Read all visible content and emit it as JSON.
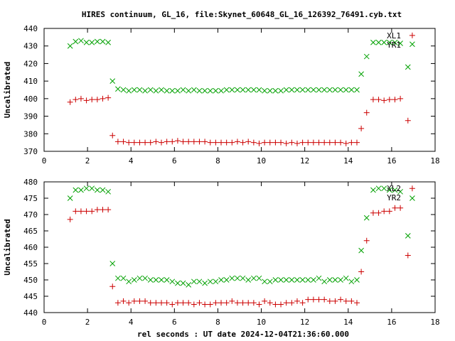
{
  "window": {
    "title": "HIRES continuum, GL_16, file:Skynet_60648_GL_16_126392_76491.cyb.txt"
  },
  "colors": {
    "plus_series": "#cc0000",
    "x_series": "#00a000",
    "axes": "#000000",
    "background": "#ffffff"
  },
  "chart_data": [
    {
      "type": "scatter",
      "title": "HIRES continuum, GL_16, file:Skynet_60648_GL_16_126392_76491.cyb.txt",
      "xlabel": "",
      "ylabel": "Uncalibrated",
      "xlim": [
        0,
        18
      ],
      "ylim": [
        370,
        440
      ],
      "xticks": [
        0,
        2,
        4,
        6,
        8,
        10,
        12,
        14,
        16,
        18
      ],
      "yticks": [
        370,
        380,
        390,
        400,
        410,
        420,
        430,
        440
      ],
      "grid": false,
      "legend": "top-right",
      "series": [
        {
          "name": "XL1",
          "marker": "x",
          "color": "#00a000",
          "points": [
            [
              1.2,
              430
            ],
            [
              1.45,
              432.5
            ],
            [
              1.7,
              433
            ],
            [
              1.95,
              432
            ],
            [
              2.2,
              432
            ],
            [
              2.45,
              432.5
            ],
            [
              2.7,
              432.5
            ],
            [
              2.95,
              432
            ],
            [
              3.15,
              410
            ],
            [
              3.4,
              405.5
            ],
            [
              3.65,
              405
            ],
            [
              3.9,
              404.5
            ],
            [
              4.15,
              405
            ],
            [
              4.4,
              405
            ],
            [
              4.65,
              404.5
            ],
            [
              4.9,
              405
            ],
            [
              5.15,
              404.5
            ],
            [
              5.4,
              405
            ],
            [
              5.65,
              404.5
            ],
            [
              5.9,
              404.5
            ],
            [
              6.15,
              404.5
            ],
            [
              6.4,
              405
            ],
            [
              6.65,
              404.5
            ],
            [
              6.9,
              405
            ],
            [
              7.15,
              404.5
            ],
            [
              7.4,
              404.5
            ],
            [
              7.65,
              404.5
            ],
            [
              7.9,
              404.5
            ],
            [
              8.15,
              404.5
            ],
            [
              8.4,
              405
            ],
            [
              8.65,
              405
            ],
            [
              8.9,
              405
            ],
            [
              9.15,
              405
            ],
            [
              9.4,
              405
            ],
            [
              9.65,
              405
            ],
            [
              9.9,
              405
            ],
            [
              10.15,
              404.5
            ],
            [
              10.4,
              404.5
            ],
            [
              10.65,
              404.5
            ],
            [
              10.9,
              404.5
            ],
            [
              11.15,
              405
            ],
            [
              11.4,
              405
            ],
            [
              11.65,
              405
            ],
            [
              11.9,
              405
            ],
            [
              12.15,
              405
            ],
            [
              12.4,
              405
            ],
            [
              12.65,
              405
            ],
            [
              12.9,
              405
            ],
            [
              13.15,
              405
            ],
            [
              13.4,
              405
            ],
            [
              13.65,
              405
            ],
            [
              13.9,
              405
            ],
            [
              14.15,
              405
            ],
            [
              14.4,
              405
            ],
            [
              14.6,
              414
            ],
            [
              14.85,
              424
            ],
            [
              15.15,
              432
            ],
            [
              15.4,
              432
            ],
            [
              15.65,
              432
            ],
            [
              15.9,
              432
            ],
            [
              16.15,
              432
            ],
            [
              16.4,
              431.5
            ],
            [
              16.75,
              418
            ],
            [
              16.95,
              431
            ]
          ]
        },
        {
          "name": "YR1",
          "marker": "+",
          "color": "#cc0000",
          "points": [
            [
              1.2,
              398
            ],
            [
              1.45,
              399.5
            ],
            [
              1.7,
              400
            ],
            [
              1.95,
              399
            ],
            [
              2.2,
              399.5
            ],
            [
              2.45,
              399.5
            ],
            [
              2.7,
              400
            ],
            [
              2.95,
              400.5
            ],
            [
              3.15,
              379
            ],
            [
              3.4,
              375.5
            ],
            [
              3.65,
              375.5
            ],
            [
              3.9,
              375
            ],
            [
              4.15,
              375
            ],
            [
              4.4,
              375
            ],
            [
              4.65,
              375
            ],
            [
              4.9,
              375
            ],
            [
              5.15,
              375.5
            ],
            [
              5.4,
              375
            ],
            [
              5.65,
              375.5
            ],
            [
              5.9,
              375.5
            ],
            [
              6.15,
              376
            ],
            [
              6.4,
              375.5
            ],
            [
              6.65,
              375.5
            ],
            [
              6.9,
              375.5
            ],
            [
              7.15,
              375.5
            ],
            [
              7.4,
              375.5
            ],
            [
              7.65,
              375
            ],
            [
              7.9,
              375
            ],
            [
              8.15,
              375
            ],
            [
              8.4,
              375
            ],
            [
              8.65,
              375
            ],
            [
              8.9,
              375.5
            ],
            [
              9.15,
              375
            ],
            [
              9.4,
              375.5
            ],
            [
              9.65,
              375
            ],
            [
              9.9,
              374.5
            ],
            [
              10.15,
              375
            ],
            [
              10.4,
              375
            ],
            [
              10.65,
              375
            ],
            [
              10.9,
              375
            ],
            [
              11.15,
              374.5
            ],
            [
              11.4,
              375
            ],
            [
              11.65,
              374.5
            ],
            [
              11.9,
              375
            ],
            [
              12.15,
              375
            ],
            [
              12.4,
              375
            ],
            [
              12.65,
              375
            ],
            [
              12.9,
              375
            ],
            [
              13.15,
              375
            ],
            [
              13.4,
              375
            ],
            [
              13.65,
              375
            ],
            [
              13.9,
              374.5
            ],
            [
              14.15,
              375
            ],
            [
              14.4,
              375
            ],
            [
              14.6,
              383
            ],
            [
              14.85,
              392
            ],
            [
              15.15,
              399.5
            ],
            [
              15.4,
              399.5
            ],
            [
              15.65,
              399
            ],
            [
              15.9,
              399.5
            ],
            [
              16.15,
              399.5
            ],
            [
              16.4,
              400
            ],
            [
              16.75,
              387.5
            ],
            [
              16.95,
              436
            ]
          ]
        }
      ]
    },
    {
      "type": "scatter",
      "title": "",
      "xlabel": "rel seconds : UT date 2024-12-04T21:36:60.000",
      "ylabel": "Uncalibrated",
      "xlim": [
        0,
        18
      ],
      "ylim": [
        440,
        480
      ],
      "xticks": [
        0,
        2,
        4,
        6,
        8,
        10,
        12,
        14,
        16,
        18
      ],
      "yticks": [
        440,
        445,
        450,
        455,
        460,
        465,
        470,
        475,
        480
      ],
      "grid": false,
      "legend": "top-right",
      "series": [
        {
          "name": "XL2",
          "marker": "x",
          "color": "#00a000",
          "points": [
            [
              1.2,
              475
            ],
            [
              1.45,
              477.5
            ],
            [
              1.7,
              477.5
            ],
            [
              1.95,
              478
            ],
            [
              2.2,
              478
            ],
            [
              2.45,
              477.5
            ],
            [
              2.7,
              477.5
            ],
            [
              2.95,
              477
            ],
            [
              3.15,
              455
            ],
            [
              3.4,
              450.5
            ],
            [
              3.65,
              450.5
            ],
            [
              3.9,
              449.5
            ],
            [
              4.15,
              450
            ],
            [
              4.4,
              450.5
            ],
            [
              4.65,
              450.5
            ],
            [
              4.9,
              450
            ],
            [
              5.15,
              450
            ],
            [
              5.4,
              450
            ],
            [
              5.65,
              450
            ],
            [
              5.9,
              449.5
            ],
            [
              6.15,
              449
            ],
            [
              6.4,
              449
            ],
            [
              6.65,
              448.5
            ],
            [
              6.9,
              449.5
            ],
            [
              7.15,
              449.5
            ],
            [
              7.4,
              449
            ],
            [
              7.65,
              449.5
            ],
            [
              7.9,
              449.5
            ],
            [
              8.15,
              450
            ],
            [
              8.4,
              450
            ],
            [
              8.65,
              450.5
            ],
            [
              8.9,
              450.5
            ],
            [
              9.15,
              450.5
            ],
            [
              9.4,
              450
            ],
            [
              9.65,
              450.5
            ],
            [
              9.9,
              450.5
            ],
            [
              10.15,
              449.5
            ],
            [
              10.4,
              449.5
            ],
            [
              10.65,
              450
            ],
            [
              10.9,
              450
            ],
            [
              11.15,
              450
            ],
            [
              11.4,
              450
            ],
            [
              11.65,
              450
            ],
            [
              11.9,
              450
            ],
            [
              12.15,
              450
            ],
            [
              12.4,
              450
            ],
            [
              12.65,
              450.5
            ],
            [
              12.9,
              449.5
            ],
            [
              13.15,
              450
            ],
            [
              13.4,
              450
            ],
            [
              13.65,
              450
            ],
            [
              13.9,
              450.5
            ],
            [
              14.15,
              449.5
            ],
            [
              14.4,
              450
            ],
            [
              14.6,
              459
            ],
            [
              14.85,
              469
            ],
            [
              15.15,
              477.5
            ],
            [
              15.4,
              478
            ],
            [
              15.65,
              478
            ],
            [
              15.9,
              477.5
            ],
            [
              16.15,
              477.5
            ],
            [
              16.4,
              477
            ],
            [
              16.75,
              463.5
            ],
            [
              16.95,
              475
            ]
          ]
        },
        {
          "name": "YR2",
          "marker": "+",
          "color": "#cc0000",
          "points": [
            [
              1.2,
              468.5
            ],
            [
              1.45,
              471
            ],
            [
              1.7,
              471
            ],
            [
              1.95,
              471
            ],
            [
              2.2,
              471
            ],
            [
              2.45,
              471.5
            ],
            [
              2.7,
              471.5
            ],
            [
              2.95,
              471.5
            ],
            [
              3.15,
              448
            ],
            [
              3.4,
              443
            ],
            [
              3.65,
              443.5
            ],
            [
              3.9,
              443
            ],
            [
              4.15,
              443.5
            ],
            [
              4.4,
              443.5
            ],
            [
              4.65,
              443.5
            ],
            [
              4.9,
              443
            ],
            [
              5.15,
              443
            ],
            [
              5.4,
              443
            ],
            [
              5.65,
              443
            ],
            [
              5.9,
              442.5
            ],
            [
              6.15,
              443
            ],
            [
              6.4,
              443
            ],
            [
              6.65,
              443
            ],
            [
              6.9,
              442.5
            ],
            [
              7.15,
              443
            ],
            [
              7.4,
              442.5
            ],
            [
              7.65,
              442.5
            ],
            [
              7.9,
              443
            ],
            [
              8.15,
              443
            ],
            [
              8.4,
              443
            ],
            [
              8.65,
              443.5
            ],
            [
              8.9,
              443
            ],
            [
              9.15,
              443
            ],
            [
              9.4,
              443
            ],
            [
              9.65,
              443
            ],
            [
              9.9,
              442.5
            ],
            [
              10.15,
              443.5
            ],
            [
              10.4,
              443
            ],
            [
              10.65,
              442.5
            ],
            [
              10.9,
              442.5
            ],
            [
              11.15,
              443
            ],
            [
              11.4,
              443
            ],
            [
              11.65,
              443.5
            ],
            [
              11.9,
              443
            ],
            [
              12.15,
              444
            ],
            [
              12.4,
              444
            ],
            [
              12.65,
              444
            ],
            [
              12.9,
              444
            ],
            [
              13.15,
              443.5
            ],
            [
              13.4,
              443.5
            ],
            [
              13.65,
              444
            ],
            [
              13.9,
              443.5
            ],
            [
              14.15,
              443.5
            ],
            [
              14.4,
              443
            ],
            [
              14.6,
              452.5
            ],
            [
              14.85,
              462
            ],
            [
              15.15,
              470.5
            ],
            [
              15.4,
              470.5
            ],
            [
              15.65,
              471
            ],
            [
              15.9,
              471
            ],
            [
              16.15,
              472
            ],
            [
              16.4,
              472
            ],
            [
              16.75,
              457.5
            ],
            [
              16.95,
              478
            ]
          ]
        }
      ]
    }
  ]
}
